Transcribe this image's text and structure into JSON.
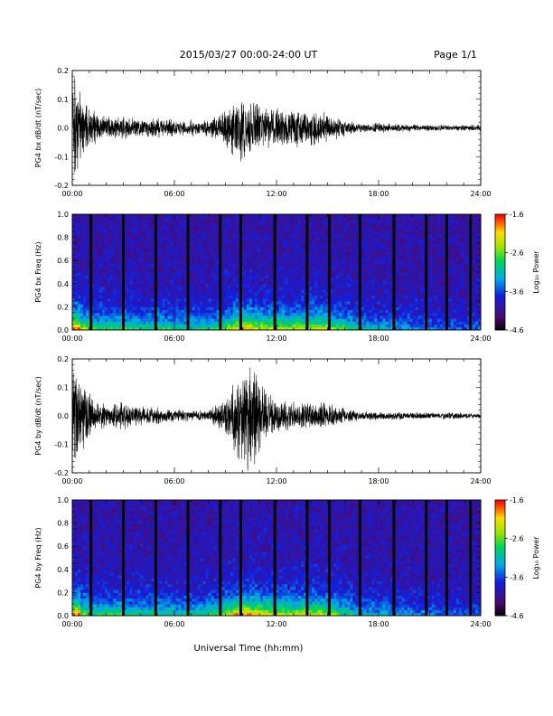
{
  "header": {
    "title": "2015/03/27  00:00-24:00 UT",
    "page": "Page 1/1"
  },
  "x_axis_title": "Universal Time (hh:mm)",
  "colorbar_label": "Log₁₀ Power",
  "colors": {
    "trace": "#000000",
    "background": "#ffffff",
    "spectrogram_floor": "#4b0b6e"
  },
  "chart_data": [
    {
      "type": "line",
      "id": "bx_dbdt",
      "ylabel": "PG4 bx dB/dt (nT/sec)",
      "ylim": [
        -0.2,
        0.2
      ],
      "yticks": [
        "0.2",
        "0.1",
        "0.0",
        "-0.1",
        "-0.2"
      ],
      "ytick_values": [
        0.2,
        0.1,
        0.0,
        -0.1,
        -0.2
      ],
      "xlim": [
        0,
        24
      ],
      "xticks": [
        "00:00",
        "06:00",
        "12:00",
        "18:00",
        "24:00"
      ],
      "series": [
        {
          "x": [
            0,
            0.5,
            1,
            1.5,
            2,
            2.5,
            3,
            3.5,
            4,
            4.5,
            5,
            5.5,
            6,
            6.5,
            7,
            7.5,
            8,
            8.5,
            9,
            9.5,
            10,
            10.5,
            11,
            11.5,
            12,
            12.5,
            13,
            13.5,
            14,
            14.5,
            15,
            15.5,
            16,
            16.5,
            17,
            17.5,
            18,
            18.5,
            19,
            19.5,
            20,
            20.5,
            21,
            21.5,
            22,
            22.5,
            23,
            23.5,
            24
          ],
          "amplitude": [
            0.2,
            0.12,
            0.07,
            0.05,
            0.04,
            0.035,
            0.04,
            0.035,
            0.03,
            0.03,
            0.035,
            0.03,
            0.03,
            0.025,
            0.03,
            0.025,
            0.03,
            0.04,
            0.06,
            0.1,
            0.12,
            0.09,
            0.08,
            0.07,
            0.07,
            0.06,
            0.065,
            0.07,
            0.06,
            0.06,
            0.055,
            0.04,
            0.03,
            0.02,
            0.015,
            0.015,
            0.02,
            0.015,
            0.015,
            0.012,
            0.012,
            0.01,
            0.012,
            0.01,
            0.01,
            0.01,
            0.01,
            0.01,
            0.01
          ]
        }
      ]
    },
    {
      "type": "heatmap",
      "id": "bx_spec",
      "ylabel": "PG4 bx Freq (Hz)",
      "ylim": [
        0.0,
        1.0
      ],
      "yticks": [
        "1.0",
        "0.8",
        "0.6",
        "0.4",
        "0.2",
        "0.0"
      ],
      "ytick_values": [
        1.0,
        0.8,
        0.6,
        0.4,
        0.2,
        0.0
      ],
      "xlim": [
        0,
        24
      ],
      "xticks": [
        "00:00",
        "06:00",
        "12:00",
        "18:00",
        "24:00"
      ],
      "colorbar": {
        "range": [
          -4.6,
          -1.6
        ],
        "ticks": [
          "-1.6",
          "-2.6",
          "-3.6",
          "-4.6"
        ],
        "tick_values": [
          -1.6,
          -2.6,
          -3.6,
          -4.6
        ]
      },
      "gaps_hours": [
        1.1,
        3.0,
        4.9,
        6.8,
        8.7,
        9.9,
        11.9,
        13.8,
        15.1,
        16.9,
        18.9,
        20.8,
        22.0,
        23.4
      ],
      "activity_profile": [
        0.95,
        0.65,
        0.55,
        0.55,
        0.5,
        0.5,
        0.5,
        0.5,
        0.45,
        0.5,
        0.5,
        0.5,
        0.45,
        0.45,
        0.45,
        0.45,
        0.5,
        0.55,
        0.65,
        0.8,
        0.85,
        0.75,
        0.7,
        0.7,
        0.7,
        0.65,
        0.7,
        0.7,
        0.7,
        0.7,
        0.65,
        0.55,
        0.5,
        0.45,
        0.4,
        0.35,
        0.35,
        0.35,
        0.3,
        0.3,
        0.25,
        0.25,
        0.25,
        0.2,
        0.2,
        0.2,
        0.2,
        0.2
      ]
    },
    {
      "type": "line",
      "id": "by_dbdt",
      "ylabel": "PG4 by dB/dt (nT/sec)",
      "ylim": [
        -0.2,
        0.2
      ],
      "yticks": [
        "0.2",
        "0.1",
        "0.0",
        "-0.1",
        "-0.2"
      ],
      "ytick_values": [
        0.2,
        0.1,
        0.0,
        -0.1,
        -0.2
      ],
      "xlim": [
        0,
        24
      ],
      "xticks": [
        "00:00",
        "06:00",
        "12:00",
        "18:00",
        "24:00"
      ],
      "series": [
        {
          "x": [
            0,
            0.5,
            1,
            1.5,
            2,
            2.5,
            3,
            3.5,
            4,
            4.5,
            5,
            5.5,
            6,
            6.5,
            7,
            7.5,
            8,
            8.5,
            9,
            9.5,
            10,
            10.5,
            11,
            11.5,
            12,
            12.5,
            13,
            13.5,
            14,
            14.5,
            15,
            15.5,
            16,
            16.5,
            17,
            17.5,
            18,
            18.5,
            19,
            19.5,
            20,
            20.5,
            21,
            21.5,
            22,
            22.5,
            23,
            23.5,
            24
          ],
          "amplitude": [
            0.2,
            0.15,
            0.08,
            0.05,
            0.04,
            0.04,
            0.05,
            0.04,
            0.035,
            0.03,
            0.03,
            0.025,
            0.025,
            0.02,
            0.02,
            0.02,
            0.02,
            0.04,
            0.07,
            0.12,
            0.18,
            0.2,
            0.15,
            0.08,
            0.06,
            0.05,
            0.05,
            0.05,
            0.05,
            0.05,
            0.045,
            0.035,
            0.03,
            0.02,
            0.015,
            0.015,
            0.015,
            0.015,
            0.015,
            0.012,
            0.012,
            0.015,
            0.012,
            0.01,
            0.015,
            0.012,
            0.01,
            0.008,
            0.008
          ]
        }
      ]
    },
    {
      "type": "heatmap",
      "id": "by_spec",
      "ylabel": "PG4 by Freq (Hz)",
      "ylim": [
        0.0,
        1.0
      ],
      "yticks": [
        "1.0",
        "0.8",
        "0.6",
        "0.4",
        "0.2",
        "0.0"
      ],
      "ytick_values": [
        1.0,
        0.8,
        0.6,
        0.4,
        0.2,
        0.0
      ],
      "xlim": [
        0,
        24
      ],
      "xticks": [
        "00:00",
        "06:00",
        "12:00",
        "18:00",
        "24:00"
      ],
      "colorbar": {
        "range": [
          -4.6,
          -1.6
        ],
        "ticks": [
          "-1.6",
          "-2.6",
          "-3.6",
          "-4.6"
        ],
        "tick_values": [
          -1.6,
          -2.6,
          -3.6,
          -4.6
        ]
      },
      "gaps_hours": [
        1.1,
        3.0,
        4.9,
        6.8,
        8.7,
        9.9,
        11.9,
        13.8,
        15.1,
        16.9,
        18.9,
        20.8,
        22.0,
        23.4
      ],
      "activity_profile": [
        0.9,
        0.6,
        0.5,
        0.5,
        0.5,
        0.5,
        0.45,
        0.45,
        0.45,
        0.45,
        0.45,
        0.45,
        0.4,
        0.4,
        0.45,
        0.45,
        0.5,
        0.55,
        0.7,
        0.85,
        0.9,
        0.85,
        0.8,
        0.75,
        0.75,
        0.7,
        0.7,
        0.75,
        0.75,
        0.7,
        0.65,
        0.55,
        0.45,
        0.4,
        0.35,
        0.35,
        0.35,
        0.3,
        0.3,
        0.3,
        0.25,
        0.25,
        0.25,
        0.2,
        0.2,
        0.2,
        0.2,
        0.2
      ]
    }
  ]
}
